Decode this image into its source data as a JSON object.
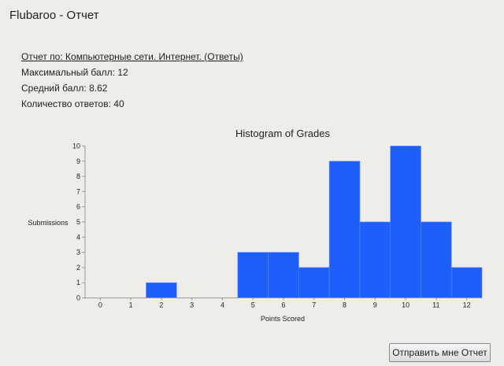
{
  "window": {
    "title": "Flubaroo - Отчет"
  },
  "report": {
    "report_for": "Отчет по: Компьютерные сети. Интернет. (Ответы)",
    "max_score": "Максимальный балл: 12",
    "avg_score": "Средний балл: 8.62",
    "submissions_count": "Количество ответов: 40"
  },
  "chart_data": {
    "type": "bar",
    "title": "Histogram of Grades",
    "xlabel": "Points Scored",
    "ylabel": "Submissions",
    "categories": [
      "0",
      "1",
      "2",
      "3",
      "4",
      "5",
      "6",
      "7",
      "8",
      "9",
      "10",
      "11",
      "12"
    ],
    "values": [
      0,
      0,
      1,
      0,
      0,
      3,
      3,
      2,
      9,
      5,
      10,
      5,
      2
    ],
    "ylim": [
      0,
      10
    ],
    "y_ticks": [
      "0",
      "1",
      "2",
      "3",
      "4",
      "5",
      "6",
      "7",
      "8",
      "9",
      "10"
    ],
    "bar_color": "#1e5efa",
    "grid": false,
    "legend": "none"
  },
  "actions": {
    "send_report_label": "Отправить мне Отчет"
  }
}
